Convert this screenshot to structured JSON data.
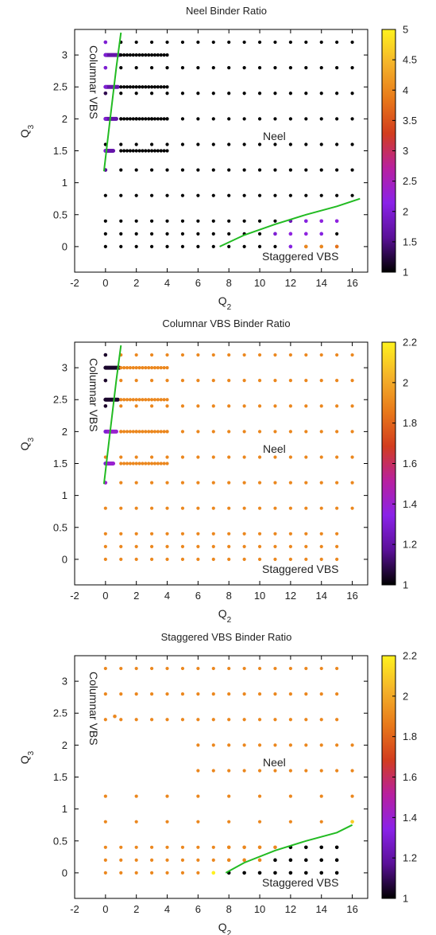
{
  "gradients": {
    "neel_cmap": [
      "#000000",
      "#5a1098",
      "#8a22e8",
      "#b8209f",
      "#d23d1e",
      "#e8791a",
      "#f4b22a",
      "#fff21e"
    ],
    "vbs_cmap": [
      "#000000",
      "#5a1098",
      "#8a22e8",
      "#b8209f",
      "#d23d1e",
      "#e8791a",
      "#f4b22a",
      "#fff21e"
    ]
  },
  "chart_data": [
    {
      "type": "scatter",
      "title": "Neel Binder Ratio",
      "xlabel": "Q2",
      "ylabel": "Q3",
      "xlim": [
        -2,
        17
      ],
      "ylim": [
        -0.4,
        3.4
      ],
      "xticks": [
        "-2",
        "0",
        "2",
        "4",
        "6",
        "8",
        "10",
        "12",
        "14",
        "16"
      ],
      "yticks": [
        "0",
        "0.5",
        "1",
        "1.5",
        "2",
        "2.5",
        "3"
      ],
      "colorbar": {
        "min": 1,
        "max": 5,
        "ticks": [
          "1",
          "1.5",
          "2",
          "2.5",
          "3",
          "3.5",
          "4",
          "4.5",
          "5"
        ]
      },
      "annotations": [
        "Columnar VBS",
        "Neel",
        "Staggered VBS"
      ],
      "dense_rows": [
        {
          "y": 3.0,
          "x_from": 0,
          "x_to": 0.9,
          "value": 1.7
        },
        {
          "y": 2.5,
          "x_from": 0,
          "x_to": 0.8,
          "value": 1.7
        },
        {
          "y": 2.0,
          "x_from": 0,
          "x_to": 0.7,
          "value": 1.7
        },
        {
          "y": 1.5,
          "x_from": 0,
          "x_to": 0.5,
          "value": 1.7
        }
      ],
      "grids": [
        {
          "xs": [
            0,
            2,
            4,
            6,
            8,
            10,
            12,
            14,
            16
          ],
          "ys": [
            0.8,
            1.2,
            1.6,
            2.0,
            2.4,
            2.8,
            3.2
          ],
          "value": 1.0
        },
        {
          "xs": [
            1,
            3,
            5,
            7,
            9,
            11,
            13,
            15
          ],
          "ys": [
            0.8,
            1.2,
            1.6,
            2.0,
            2.4,
            2.8,
            3.2
          ],
          "value": 1.0
        },
        {
          "xs": [
            0,
            1,
            2,
            3,
            4,
            5,
            6,
            7,
            8,
            9,
            10,
            11,
            12,
            13,
            14,
            15
          ],
          "ys": [
            0.0,
            0.2,
            0.4
          ],
          "value": 1.0
        },
        {
          "xs": [
            1,
            1.2,
            1.4,
            1.6,
            1.8,
            2,
            2.2,
            2.4,
            2.6,
            2.8,
            3,
            3.2,
            3.4,
            3.6,
            3.8,
            4
          ],
          "ys": [
            1.5,
            2.0,
            2.5,
            3.0
          ],
          "value": 1.0
        }
      ],
      "points": [
        {
          "x": 0,
          "y": 1.5,
          "v": 2.0
        },
        {
          "x": 0,
          "y": 2.0,
          "v": 2.0
        },
        {
          "x": 0,
          "y": 2.5,
          "v": 2.0
        },
        {
          "x": 0,
          "y": 3.0,
          "v": 2.0
        },
        {
          "x": 12,
          "y": 0.0,
          "v": 2.1
        },
        {
          "x": 13,
          "y": 0.0,
          "v": 4.0
        },
        {
          "x": 14,
          "y": 0.0,
          "v": 4.0
        },
        {
          "x": 15,
          "y": 0.0,
          "v": 3.8
        },
        {
          "x": 11,
          "y": 0.2,
          "v": 2.0
        },
        {
          "x": 12,
          "y": 0.2,
          "v": 2.2
        },
        {
          "x": 13,
          "y": 0.2,
          "v": 2.2
        },
        {
          "x": 14,
          "y": 0.2,
          "v": 2.1
        },
        {
          "x": 12,
          "y": 0.4,
          "v": 1.8
        },
        {
          "x": 13,
          "y": 0.4,
          "v": 2.1
        },
        {
          "x": 14,
          "y": 0.4,
          "v": 2.2
        },
        {
          "x": 15,
          "y": 0.4,
          "v": 2.2
        },
        {
          "x": 0,
          "y": 3.2,
          "v": 2.0
        },
        {
          "x": 0,
          "y": 2.8,
          "v": 2.0
        },
        {
          "x": 0,
          "y": 2.4,
          "v": 1.3
        },
        {
          "x": 0,
          "y": 1.2,
          "v": 1.6
        }
      ],
      "curves": [
        {
          "points": [
            [
              -0.1,
              1.18
            ],
            [
              0.3,
              2.0
            ],
            [
              0.7,
              2.8
            ],
            [
              1.0,
              3.35
            ]
          ]
        },
        {
          "points": [
            [
              7.4,
              0.0
            ],
            [
              9,
              0.18
            ],
            [
              11,
              0.35
            ],
            [
              13,
              0.5
            ],
            [
              15,
              0.63
            ],
            [
              16.5,
              0.75
            ]
          ]
        }
      ]
    },
    {
      "type": "scatter",
      "title": "Columnar VBS Binder Ratio",
      "xlabel": "Q2",
      "ylabel": "Q3",
      "xlim": [
        -2,
        17
      ],
      "ylim": [
        -0.4,
        3.4
      ],
      "xticks": [
        "-2",
        "0",
        "2",
        "4",
        "6",
        "8",
        "10",
        "12",
        "14",
        "16"
      ],
      "yticks": [
        "0",
        "0.5",
        "1",
        "1.5",
        "2",
        "2.5",
        "3"
      ],
      "colorbar": {
        "min": 1,
        "max": 2.2,
        "ticks": [
          "1",
          "1.2",
          "1.4",
          "1.6",
          "1.8",
          "2",
          "2.2"
        ]
      },
      "annotations": [
        "Columnar VBS",
        "Neel",
        "Staggered VBS"
      ],
      "dense_rows": [
        {
          "y": 3.0,
          "x_from": 0,
          "x_to": 0.9,
          "value": 1.05
        },
        {
          "y": 2.5,
          "x_from": 0,
          "x_to": 0.8,
          "value": 1.05
        },
        {
          "y": 2.0,
          "x_from": 0,
          "x_to": 0.7,
          "value": 1.4
        },
        {
          "y": 1.5,
          "x_from": 0,
          "x_to": 0.5,
          "value": 1.4
        }
      ],
      "grids": [
        {
          "xs": [
            0,
            2,
            4,
            6,
            8,
            10,
            12,
            14,
            16
          ],
          "ys": [
            0.8,
            1.2,
            1.6,
            2.0,
            2.4,
            2.8,
            3.2
          ],
          "value": 1.9
        },
        {
          "xs": [
            1,
            3,
            5,
            7,
            9,
            11,
            13,
            15
          ],
          "ys": [
            0.8,
            1.2,
            1.6,
            2.0,
            2.4,
            2.8,
            3.2
          ],
          "value": 1.9
        },
        {
          "xs": [
            0,
            1,
            2,
            3,
            4,
            5,
            6,
            7,
            8,
            9,
            10,
            11,
            12,
            13,
            14,
            15
          ],
          "ys": [
            0.0,
            0.2,
            0.4
          ],
          "value": 1.9
        },
        {
          "xs": [
            1,
            1.2,
            1.4,
            1.6,
            1.8,
            2,
            2.2,
            2.4,
            2.6,
            2.8,
            3,
            3.2,
            3.4,
            3.6,
            3.8,
            4
          ],
          "ys": [
            1.5,
            2.0,
            2.5,
            3.0
          ],
          "value": 1.9
        }
      ],
      "points": [
        {
          "x": 0,
          "y": 3.2,
          "v": 1.05
        },
        {
          "x": 0,
          "y": 2.8,
          "v": 1.05
        },
        {
          "x": 0,
          "y": 2.4,
          "v": 1.05
        },
        {
          "x": 0,
          "y": 1.2,
          "v": 1.4
        },
        {
          "x": 0,
          "y": 1.5,
          "v": 1.3
        },
        {
          "x": 0,
          "y": 2.0,
          "v": 1.3
        },
        {
          "x": 0,
          "y": 2.5,
          "v": 1.05
        },
        {
          "x": 0,
          "y": 3.0,
          "v": 1.05
        }
      ],
      "curves": [
        {
          "points": [
            [
              -0.1,
              1.18
            ],
            [
              0.3,
              2.0
            ],
            [
              0.7,
              2.8
            ],
            [
              1.0,
              3.35
            ]
          ]
        }
      ]
    },
    {
      "type": "scatter",
      "title": "Staggered VBS Binder Ratio",
      "xlabel": "Q2",
      "ylabel": "Q3",
      "xlim": [
        -2,
        17
      ],
      "ylim": [
        -0.4,
        3.4
      ],
      "xticks": [
        "-2",
        "0",
        "2",
        "4",
        "6",
        "8",
        "10",
        "12",
        "14",
        "16"
      ],
      "yticks": [
        "0",
        "0.5",
        "1",
        "1.5",
        "2",
        "2.5",
        "3"
      ],
      "colorbar": {
        "min": 1,
        "max": 2.2,
        "ticks": [
          "1",
          "1.2",
          "1.4",
          "1.6",
          "1.8",
          "2",
          "2.2"
        ]
      },
      "annotations": [
        "Columnar VBS",
        "Neel",
        "Staggered VBS"
      ],
      "dense_rows": [],
      "grids": [
        {
          "xs": [
            0,
            1,
            2,
            3,
            4,
            5,
            6,
            7,
            8,
            9,
            10,
            11,
            12,
            13,
            14,
            15
          ],
          "ys": [
            2.4,
            2.8,
            3.2
          ],
          "value": 1.9
        },
        {
          "xs": [
            6,
            8,
            10,
            12,
            14,
            16
          ],
          "ys": [
            1.6,
            2.0
          ],
          "value": 1.9
        },
        {
          "xs": [
            7,
            9,
            11,
            13,
            15
          ],
          "ys": [
            1.6,
            2.0
          ],
          "value": 1.9
        },
        {
          "xs": [
            0,
            2,
            4,
            6,
            8,
            10,
            12,
            14,
            16
          ],
          "ys": [
            0.8,
            1.2
          ],
          "value": 1.9
        },
        {
          "xs": [
            0,
            1,
            2,
            3,
            4,
            5,
            6,
            7
          ],
          "ys": [
            0.0,
            0.2,
            0.4
          ],
          "value": 1.9
        }
      ],
      "points": [
        {
          "x": 0.6,
          "y": 2.45,
          "v": 1.9
        },
        {
          "x": 8,
          "y": 0.0,
          "v": 1.0
        },
        {
          "x": 9,
          "y": 0.0,
          "v": 1.0
        },
        {
          "x": 10,
          "y": 0.0,
          "v": 1.0
        },
        {
          "x": 11,
          "y": 0.0,
          "v": 1.0
        },
        {
          "x": 12,
          "y": 0.0,
          "v": 1.0
        },
        {
          "x": 13,
          "y": 0.0,
          "v": 1.0
        },
        {
          "x": 14,
          "y": 0.0,
          "v": 1.0
        },
        {
          "x": 15,
          "y": 0.0,
          "v": 1.0
        },
        {
          "x": 8,
          "y": 0.2,
          "v": 1.9
        },
        {
          "x": 9,
          "y": 0.2,
          "v": 1.9
        },
        {
          "x": 10,
          "y": 0.2,
          "v": 1.9
        },
        {
          "x": 11,
          "y": 0.2,
          "v": 1.0
        },
        {
          "x": 12,
          "y": 0.2,
          "v": 1.0
        },
        {
          "x": 13,
          "y": 0.2,
          "v": 1.0
        },
        {
          "x": 14,
          "y": 0.2,
          "v": 1.0
        },
        {
          "x": 15,
          "y": 0.2,
          "v": 1.0
        },
        {
          "x": 8,
          "y": 0.4,
          "v": 1.9
        },
        {
          "x": 9,
          "y": 0.4,
          "v": 1.9
        },
        {
          "x": 10,
          "y": 0.4,
          "v": 1.9
        },
        {
          "x": 11,
          "y": 0.4,
          "v": 1.9
        },
        {
          "x": 12,
          "y": 0.4,
          "v": 1.0
        },
        {
          "x": 13,
          "y": 0.4,
          "v": 1.0
        },
        {
          "x": 14,
          "y": 0.4,
          "v": 1.0
        },
        {
          "x": 15,
          "y": 0.4,
          "v": 1.0
        },
        {
          "x": 7,
          "y": 0.0,
          "v": 2.2
        },
        {
          "x": 16,
          "y": 0.8,
          "v": 2.1
        }
      ],
      "curves": [
        {
          "points": [
            [
              7.8,
              0.0
            ],
            [
              9,
              0.16
            ],
            [
              11,
              0.35
            ],
            [
              13,
              0.5
            ],
            [
              15,
              0.63
            ],
            [
              16,
              0.75
            ]
          ]
        }
      ]
    }
  ]
}
